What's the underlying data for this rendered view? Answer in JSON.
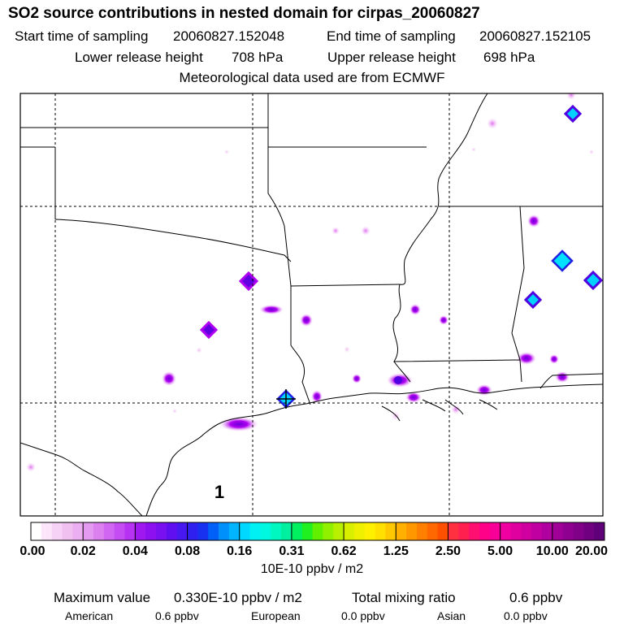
{
  "header": {
    "title": "SO2 source contributions in nested domain for cirpas_20060827",
    "start_label": "Start time of sampling",
    "start_value": "20060827.152048",
    "end_label": "End time of sampling",
    "end_value": "20060827.152105",
    "lower_label": "Lower release height",
    "lower_value": "708 hPa",
    "upper_label": "Upper release height",
    "upper_value": "698 hPa",
    "met_line": "Meteorological data used are from ECMWF"
  },
  "map": {
    "track_label": "1"
  },
  "colorbar": {
    "labels": [
      "0.00",
      "0.02",
      "0.04",
      "0.08",
      "0.16",
      "0.31",
      "0.62",
      "1.25",
      "2.50",
      "5.00",
      "10.00",
      "20.00"
    ],
    "unit": "10E-10 ppbv / m2"
  },
  "footer": {
    "max_label": "Maximum value",
    "max_value": "0.330E-10 ppbv / m2",
    "total_label": "Total mixing ratio",
    "total_value": "0.6 ppbv",
    "american_label": "American",
    "american_value": "0.6 ppbv",
    "european_label": "European",
    "european_value": "0.0 ppbv",
    "asian_label": "Asian",
    "asian_value": "0.0 ppbv"
  },
  "colors": {
    "low": "#f5d5f5",
    "mid": "#b000f0",
    "blue": "#2020e0",
    "cyan": "#00e0ff",
    "border": "#000000"
  }
}
